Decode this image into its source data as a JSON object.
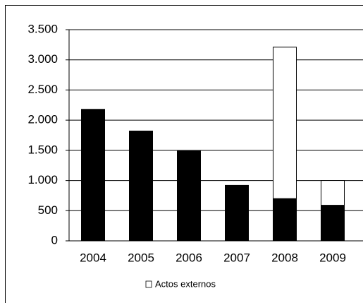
{
  "chart_data": {
    "type": "stacked-bar",
    "categories": [
      "2004",
      "2005",
      "2006",
      "2007",
      "2008",
      "2009"
    ],
    "series": [
      {
        "color": "#000000",
        "values": [
          2180,
          1820,
          1490,
          920,
          700,
          590
        ]
      },
      {
        "name": "Actos externos",
        "color": "#ffffff",
        "values": [
          null,
          null,
          null,
          null,
          2510,
          410
        ]
      }
    ],
    "ylim": [
      0,
      3500
    ],
    "yticks": [
      0,
      500,
      {
        "value": 1000,
        "label": "1.000"
      },
      {
        "value": 1500,
        "label": "1.500"
      },
      {
        "value": 2000,
        "label": "2.000"
      },
      {
        "value": 2500,
        "label": "2.500"
      },
      {
        "value": 3000,
        "label": "3.000"
      },
      {
        "value": 3500,
        "label": "3.500"
      }
    ],
    "grid": true,
    "legend": "bottom"
  }
}
